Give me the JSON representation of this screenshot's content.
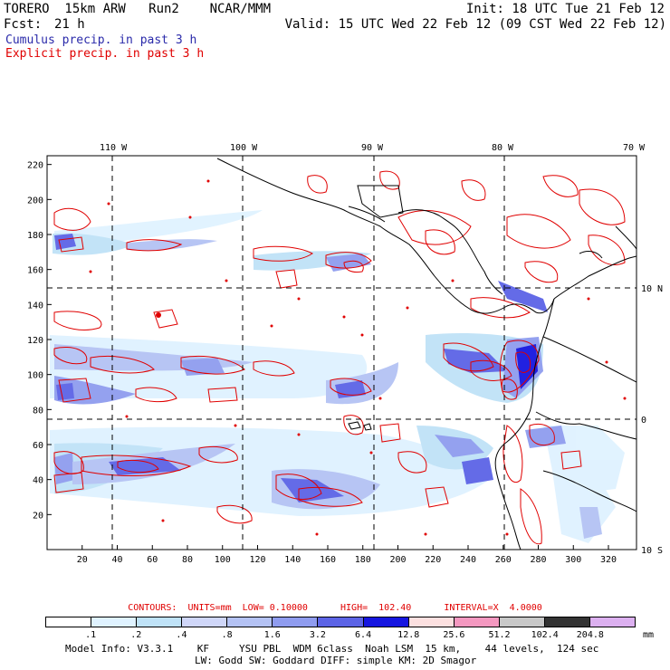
{
  "header": {
    "title": "TORERO  15km ARW   Run2    NCAR/MMM",
    "init": "Init: 18 UTC Tue 21 Feb 12",
    "fcst_label": "Fcst:",
    "fcst_value": "21 h",
    "valid": "Valid: 15 UTC Wed 22 Feb 12 (09 CST Wed 22 Feb 12)"
  },
  "legend": {
    "cumulus": "Cumulus precip. in past 3 h",
    "explicit": "Explicit precip. in past 3 h",
    "cumulus_color": "#2a2aaa",
    "explicit_color": "#e00000"
  },
  "map": {
    "x_ticks": [
      "20",
      "40",
      "60",
      "80",
      "100",
      "120",
      "140",
      "160",
      "180",
      "200",
      "220",
      "240",
      "260",
      "280",
      "300",
      "320"
    ],
    "y_ticks": [
      "20",
      "40",
      "60",
      "80",
      "100",
      "120",
      "140",
      "160",
      "180",
      "200",
      "220"
    ],
    "lon_labels": [
      "110 W",
      "100 W",
      "90 W",
      "80 W",
      "70 W"
    ],
    "lat_labels": [
      "10 N",
      "0",
      "10 S"
    ]
  },
  "contours_line": "CONTOURS:  UNITS=mm  LOW= 0.10000      HIGH=  102.40      INTERVAL=X  4.0000",
  "colorbar": {
    "labels": [
      ".1",
      ".2",
      ".4",
      ".8",
      "1.6",
      "3.2",
      "6.4",
      "12.8",
      "25.6",
      "51.2",
      "102.4",
      "204.8"
    ],
    "unit": "mm",
    "colors": [
      "#ffffff",
      "#dff2ff",
      "#bfe2f7",
      "#cfd6f8",
      "#b4c2f4",
      "#8f9cef",
      "#5c64e6",
      "#1616e0",
      "#fce0e0",
      "#f498c0",
      "#c8c8c8",
      "#333333",
      "#dcb0f0"
    ]
  },
  "model_info": {
    "line1": "Model Info: V3.3.1    KF     YSU PBL  WDM 6class  Noah LSM  15 km,    44 levels,  124 sec",
    "line2": "LW: Godd SW: Goddard DIFF: simple KM: 2D Smagor"
  }
}
